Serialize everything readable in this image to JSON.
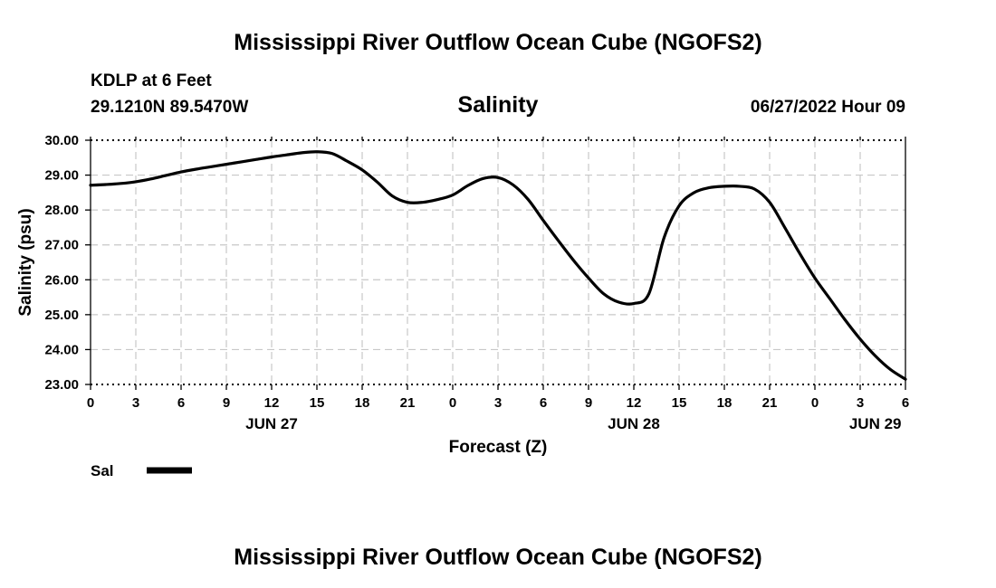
{
  "page": {
    "title": "Mississippi River Outflow Ocean Cube (NGOFS2)",
    "footer_title": "Mississippi River Outflow Ocean Cube (NGOFS2)"
  },
  "station": {
    "name": "KDLP at 6 Feet",
    "coords": "29.1210N  89.5470W",
    "run_time": "06/27/2022 Hour 09"
  },
  "chart_data": {
    "type": "line",
    "title": "Salinity",
    "xlabel": "Forecast (Z)",
    "ylabel": "Salinity (psu)",
    "ylim": [
      23,
      30
    ],
    "xlim": [
      0,
      54
    ],
    "grid": true,
    "y_ticks": [
      "23.00",
      "24.00",
      "25.00",
      "26.00",
      "27.00",
      "28.00",
      "29.00",
      "30.00"
    ],
    "x_ticks": [
      {
        "hour": 0,
        "label": "0"
      },
      {
        "hour": 3,
        "label": "3"
      },
      {
        "hour": 6,
        "label": "6"
      },
      {
        "hour": 9,
        "label": "9"
      },
      {
        "hour": 12,
        "label": "12"
      },
      {
        "hour": 15,
        "label": "15"
      },
      {
        "hour": 18,
        "label": "18"
      },
      {
        "hour": 21,
        "label": "21"
      },
      {
        "hour": 24,
        "label": "0"
      },
      {
        "hour": 27,
        "label": "3"
      },
      {
        "hour": 30,
        "label": "6"
      },
      {
        "hour": 33,
        "label": "9"
      },
      {
        "hour": 36,
        "label": "12"
      },
      {
        "hour": 39,
        "label": "15"
      },
      {
        "hour": 42,
        "label": "18"
      },
      {
        "hour": 45,
        "label": "21"
      },
      {
        "hour": 48,
        "label": "0"
      },
      {
        "hour": 51,
        "label": "3"
      },
      {
        "hour": 54,
        "label": "6"
      }
    ],
    "date_labels": [
      {
        "hour": 12,
        "label": "JUN 27"
      },
      {
        "hour": 36,
        "label": "JUN 28"
      },
      {
        "hour": 52,
        "label": "JUN 29"
      }
    ],
    "legend": {
      "label": "Sal",
      "placement": "bottom-left"
    },
    "series": [
      {
        "name": "Sal",
        "color": "#000000",
        "x": [
          0,
          1,
          2,
          3,
          4,
          5,
          6,
          7,
          8,
          9,
          10,
          11,
          12,
          13,
          14,
          15,
          16,
          17,
          18,
          19,
          20,
          21,
          22,
          23,
          24,
          25,
          26,
          27,
          28,
          29,
          30,
          31,
          32,
          33,
          34,
          35,
          36,
          37,
          38,
          39,
          40,
          41,
          42,
          43,
          44,
          45,
          46,
          47,
          48,
          49,
          50,
          51,
          52,
          53,
          54
        ],
        "values": [
          28.71,
          28.73,
          28.76,
          28.81,
          28.89,
          28.99,
          29.09,
          29.17,
          29.24,
          29.31,
          29.38,
          29.45,
          29.52,
          29.58,
          29.64,
          29.67,
          29.62,
          29.4,
          29.15,
          28.8,
          28.4,
          28.22,
          28.22,
          28.3,
          28.43,
          28.7,
          28.9,
          28.93,
          28.72,
          28.3,
          27.7,
          27.12,
          26.56,
          26.05,
          25.6,
          25.36,
          25.32,
          25.6,
          27.2,
          28.12,
          28.5,
          28.64,
          28.68,
          28.68,
          28.6,
          28.22,
          27.5,
          26.75,
          26.05,
          25.45,
          24.85,
          24.3,
          23.82,
          23.43,
          23.15
        ]
      }
    ]
  }
}
